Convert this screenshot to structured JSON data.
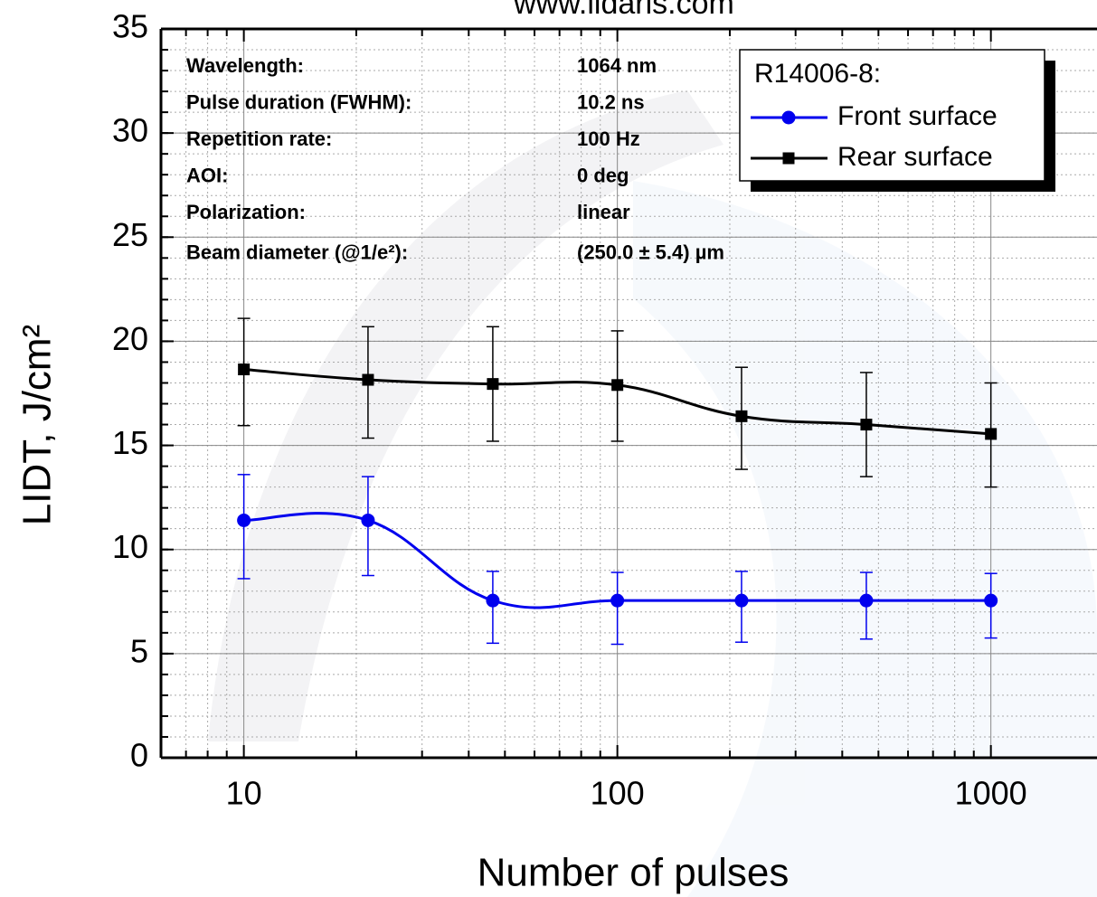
{
  "chart_data": {
    "type": "line",
    "title": "www.lidaris.com",
    "xlabel": "Number of pulses",
    "ylabel": "LIDT, J/cm²",
    "log_x": true,
    "grid": true,
    "xlim": [
      6,
      2000
    ],
    "xticks": [
      10,
      100,
      1000
    ],
    "ylim": [
      0,
      35
    ],
    "yticks": [
      0,
      5,
      10,
      15,
      20,
      25,
      30,
      35
    ],
    "x": [
      10,
      21.5,
      46.4,
      100,
      215,
      464,
      1000
    ],
    "legend_title": "R14006-8:",
    "legend_position": "upper right",
    "series": [
      {
        "name": "Front surface",
        "color": "#0000ee",
        "marker": "circle",
        "values": [
          11.4,
          11.4,
          7.55,
          7.55,
          7.55,
          7.55,
          7.55
        ],
        "yerr_minus": [
          2.8,
          2.65,
          2.05,
          2.1,
          2.0,
          1.85,
          1.8
        ],
        "yerr_plus": [
          2.2,
          2.1,
          1.4,
          1.35,
          1.4,
          1.35,
          1.3
        ]
      },
      {
        "name": "Rear surface",
        "color": "#000000",
        "marker": "square",
        "values": [
          18.65,
          18.15,
          17.95,
          17.9,
          16.4,
          16.0,
          15.55
        ],
        "yerr_minus": [
          2.7,
          2.8,
          2.75,
          2.7,
          2.55,
          2.5,
          2.55
        ],
        "yerr_plus": [
          2.45,
          2.55,
          2.75,
          2.6,
          2.35,
          2.5,
          2.45
        ]
      }
    ],
    "info": [
      {
        "label": "Wavelength:",
        "value": "1064 nm"
      },
      {
        "label": "Pulse duration (FWHM):",
        "value": "10.2 ns"
      },
      {
        "label": "Repetition rate:",
        "value": "100 Hz"
      },
      {
        "label": "AOI:",
        "value": "0 deg"
      },
      {
        "label": "Polarization:",
        "value": "linear"
      },
      {
        "label": "Beam diameter (@1/e²):",
        "value": "(250.0 ± 5.4) µm"
      }
    ]
  }
}
